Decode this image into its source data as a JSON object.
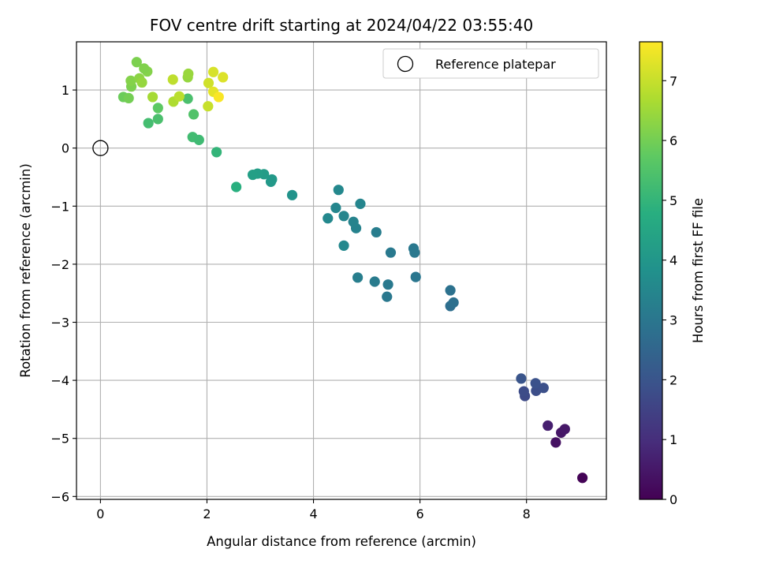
{
  "chart_data": {
    "type": "scatter",
    "title": "FOV centre drift starting at 2024/04/22 03:55:40",
    "xlabel": "Angular distance from reference (arcmin)",
    "ylabel": "Rotation from reference (arcmin)",
    "xlim": [
      -0.45,
      9.5
    ],
    "ylim": [
      -6.05,
      1.83
    ],
    "xticks": [
      0,
      2,
      4,
      6,
      8
    ],
    "yticks": [
      1,
      0,
      -1,
      -2,
      -3,
      -4,
      -5,
      -6
    ],
    "xtick_labels": [
      "0",
      "2",
      "4",
      "6",
      "8"
    ],
    "ytick_labels": [
      "1",
      "0",
      "−1",
      "−2",
      "−3",
      "−4",
      "−5",
      "−6"
    ],
    "grid": true,
    "legend": {
      "location": "top-right",
      "entries": [
        "Reference platepar"
      ]
    },
    "reference_point": {
      "label": "Reference platepar",
      "x": 0,
      "y": 0
    },
    "colorbar": {
      "label": "Hours from first FF file",
      "range": [
        0,
        7.65
      ],
      "colormap": "viridis",
      "ticks": [
        0,
        1,
        2,
        3,
        4,
        5,
        6,
        7
      ],
      "tick_labels": [
        "0",
        "1",
        "2",
        "3",
        "4",
        "5",
        "6",
        "7"
      ]
    },
    "points": [
      {
        "x": 9.05,
        "y": -5.68,
        "c": 0.05
      },
      {
        "x": 8.55,
        "y": -5.07,
        "c": 0.35
      },
      {
        "x": 8.65,
        "y": -4.9,
        "c": 0.45
      },
      {
        "x": 8.72,
        "y": -4.84,
        "c": 0.5
      },
      {
        "x": 8.4,
        "y": -4.78,
        "c": 0.65
      },
      {
        "x": 7.97,
        "y": -4.27,
        "c": 1.7
      },
      {
        "x": 7.95,
        "y": -4.19,
        "c": 1.75
      },
      {
        "x": 8.18,
        "y": -4.18,
        "c": 1.8
      },
      {
        "x": 8.32,
        "y": -4.13,
        "c": 1.85
      },
      {
        "x": 8.17,
        "y": -4.05,
        "c": 1.9
      },
      {
        "x": 7.9,
        "y": -3.97,
        "c": 2.0
      },
      {
        "x": 6.57,
        "y": -2.72,
        "c": 2.75
      },
      {
        "x": 6.63,
        "y": -2.66,
        "c": 2.8
      },
      {
        "x": 6.57,
        "y": -2.45,
        "c": 2.85
      },
      {
        "x": 5.38,
        "y": -2.56,
        "c": 3.05
      },
      {
        "x": 5.4,
        "y": -2.35,
        "c": 3.1
      },
      {
        "x": 5.15,
        "y": -2.3,
        "c": 3.15
      },
      {
        "x": 5.92,
        "y": -2.22,
        "c": 3.0
      },
      {
        "x": 4.83,
        "y": -2.23,
        "c": 3.25
      },
      {
        "x": 5.9,
        "y": -1.8,
        "c": 3.05
      },
      {
        "x": 5.45,
        "y": -1.8,
        "c": 3.1
      },
      {
        "x": 5.88,
        "y": -1.73,
        "c": 3.05
      },
      {
        "x": 4.57,
        "y": -1.68,
        "c": 3.55
      },
      {
        "x": 5.18,
        "y": -1.45,
        "c": 3.2
      },
      {
        "x": 4.8,
        "y": -1.38,
        "c": 3.35
      },
      {
        "x": 4.75,
        "y": -1.27,
        "c": 3.4
      },
      {
        "x": 4.57,
        "y": -1.17,
        "c": 3.45
      },
      {
        "x": 4.27,
        "y": -1.21,
        "c": 3.55
      },
      {
        "x": 4.42,
        "y": -1.03,
        "c": 3.5
      },
      {
        "x": 4.88,
        "y": -0.96,
        "c": 3.45
      },
      {
        "x": 4.47,
        "y": -0.72,
        "c": 3.55
      },
      {
        "x": 3.6,
        "y": -0.81,
        "c": 3.9
      },
      {
        "x": 3.2,
        "y": -0.58,
        "c": 4.05
      },
      {
        "x": 3.22,
        "y": -0.54,
        "c": 4.1
      },
      {
        "x": 3.07,
        "y": -0.45,
        "c": 4.2
      },
      {
        "x": 2.95,
        "y": -0.44,
        "c": 4.25
      },
      {
        "x": 2.86,
        "y": -0.46,
        "c": 4.3
      },
      {
        "x": 2.55,
        "y": -0.67,
        "c": 4.8
      },
      {
        "x": 2.18,
        "y": -0.07,
        "c": 5.0
      },
      {
        "x": 1.73,
        "y": 0.19,
        "c": 5.25
      },
      {
        "x": 1.85,
        "y": 0.14,
        "c": 5.2
      },
      {
        "x": 0.9,
        "y": 0.43,
        "c": 5.3
      },
      {
        "x": 1.08,
        "y": 0.5,
        "c": 5.4
      },
      {
        "x": 1.75,
        "y": 0.58,
        "c": 5.5
      },
      {
        "x": 1.08,
        "y": 0.69,
        "c": 5.7
      },
      {
        "x": 1.64,
        "y": 0.85,
        "c": 5.4
      },
      {
        "x": 0.43,
        "y": 0.88,
        "c": 5.9
      },
      {
        "x": 0.53,
        "y": 0.86,
        "c": 6.0
      },
      {
        "x": 0.58,
        "y": 1.06,
        "c": 6.1
      },
      {
        "x": 0.57,
        "y": 1.16,
        "c": 6.2
      },
      {
        "x": 0.73,
        "y": 1.2,
        "c": 6.3
      },
      {
        "x": 0.78,
        "y": 1.13,
        "c": 6.4
      },
      {
        "x": 0.88,
        "y": 1.32,
        "c": 6.2
      },
      {
        "x": 0.82,
        "y": 1.37,
        "c": 6.15
      },
      {
        "x": 0.68,
        "y": 1.48,
        "c": 6.1
      },
      {
        "x": 1.64,
        "y": 1.22,
        "c": 6.4
      },
      {
        "x": 1.65,
        "y": 1.28,
        "c": 6.45
      },
      {
        "x": 0.98,
        "y": 0.88,
        "c": 6.6
      },
      {
        "x": 1.37,
        "y": 0.8,
        "c": 6.7
      },
      {
        "x": 1.48,
        "y": 0.89,
        "c": 6.85
      },
      {
        "x": 1.36,
        "y": 1.18,
        "c": 6.9
      },
      {
        "x": 2.02,
        "y": 0.72,
        "c": 7.0
      },
      {
        "x": 2.03,
        "y": 1.12,
        "c": 7.1
      },
      {
        "x": 2.12,
        "y": 1.31,
        "c": 7.2
      },
      {
        "x": 2.3,
        "y": 1.22,
        "c": 7.25
      },
      {
        "x": 2.12,
        "y": 0.97,
        "c": 7.35
      },
      {
        "x": 2.22,
        "y": 0.88,
        "c": 7.6
      }
    ]
  }
}
